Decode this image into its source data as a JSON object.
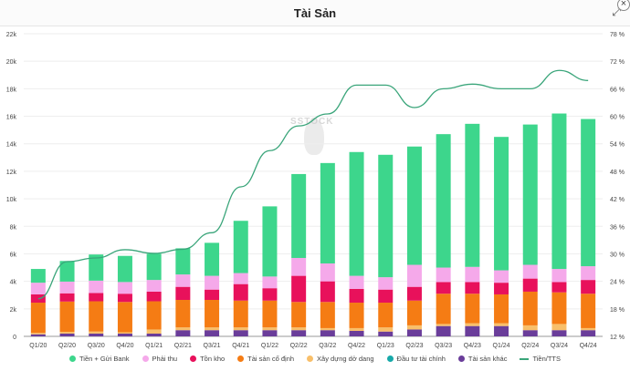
{
  "header": {
    "title": "Tài Sản",
    "expand_icon": "expand-icon",
    "close_icon": "close-icon"
  },
  "watermark": "SSTOCK",
  "chart_data": {
    "type": "bar",
    "title": "Tài Sản",
    "stacked": true,
    "categories": [
      "Q1/20",
      "Q2/20",
      "Q3/20",
      "Q4/20",
      "Q1/21",
      "Q2/21",
      "Q3/21",
      "Q4/21",
      "Q1/22",
      "Q2/22",
      "Q3/22",
      "Q4/22",
      "Q1/23",
      "Q2/23",
      "Q3/23",
      "Q4/23",
      "Q1/24",
      "Q2/24",
      "Q3/24",
      "Q4/24"
    ],
    "left_axis": {
      "min": 0,
      "max": 22000,
      "ticks": [
        "0",
        "2k",
        "4k",
        "6k",
        "8k",
        "10k",
        "12k",
        "14k",
        "16k",
        "18k",
        "20k",
        "22k"
      ]
    },
    "right_axis": {
      "min": 12,
      "max": 78,
      "ticks": [
        "12 %",
        "18 %",
        "24 %",
        "30 %",
        "36 %",
        "42 %",
        "48 %",
        "54 %",
        "60 %",
        "66 %",
        "72 %",
        "78 %"
      ]
    },
    "series": [
      {
        "name": "Tài sản khác",
        "color": "#6a3d9a",
        "values": [
          150,
          200,
          200,
          200,
          200,
          450,
          450,
          450,
          450,
          450,
          450,
          400,
          350,
          500,
          750,
          750,
          750,
          450,
          450,
          450
        ]
      },
      {
        "name": "Xây dựng dở dang",
        "color": "#f8bf6a",
        "values": [
          100,
          130,
          150,
          100,
          300,
          200,
          200,
          200,
          200,
          200,
          150,
          200,
          300,
          300,
          150,
          200,
          200,
          350,
          450,
          150
        ]
      },
      {
        "name": "Tài sản cố định",
        "color": "#f57c14",
        "values": [
          2200,
          2200,
          2200,
          2200,
          2050,
          2000,
          2000,
          1950,
          1950,
          1850,
          1900,
          1850,
          1800,
          1800,
          2200,
          2150,
          2100,
          2450,
          2300,
          2500
        ]
      },
      {
        "name": "Tồn kho",
        "color": "#e8115b",
        "values": [
          600,
          600,
          600,
          600,
          700,
          950,
          750,
          1200,
          900,
          1900,
          1500,
          1000,
          950,
          1000,
          850,
          850,
          850,
          950,
          750,
          1000
        ]
      },
      {
        "name": "Phải thu",
        "color": "#f5a9ea",
        "values": [
          850,
          850,
          900,
          850,
          850,
          900,
          1000,
          800,
          850,
          1300,
          1300,
          950,
          900,
          1600,
          1050,
          1100,
          900,
          1000,
          950,
          1000
        ]
      },
      {
        "name": "Đầu tư tài chính",
        "color": "#17a9a9",
        "values": [
          0,
          0,
          0,
          0,
          0,
          0,
          0,
          0,
          0,
          0,
          0,
          0,
          0,
          0,
          0,
          0,
          0,
          0,
          0,
          0
        ]
      },
      {
        "name": "Tiền + Gửi Bank",
        "color": "#3dd68c",
        "values": [
          1000,
          1500,
          1900,
          1900,
          1900,
          1900,
          2400,
          3800,
          5100,
          6100,
          7300,
          9000,
          8900,
          8600,
          9700,
          10400,
          9700,
          10200,
          11300,
          10700
        ]
      }
    ],
    "line": {
      "name": "Tiền/TTS",
      "color": "#3aa57a",
      "axis": "right",
      "values": [
        20.2,
        28.3,
        29.1,
        30.9,
        30.1,
        31,
        34.6,
        44.6,
        52.5,
        57.9,
        60.5,
        66.8,
        66.8,
        61.9,
        66,
        67,
        66,
        66,
        70,
        67.8
      ]
    },
    "legend": {
      "position": "bottom",
      "items": [
        {
          "label": "Tiền + Gửi Bank",
          "color": "#3dd68c",
          "kind": "dot"
        },
        {
          "label": "Phải thu",
          "color": "#f5a9ea",
          "kind": "dot"
        },
        {
          "label": "Tồn kho",
          "color": "#e8115b",
          "kind": "dot"
        },
        {
          "label": "Tài sản cố định",
          "color": "#f57c14",
          "kind": "dot"
        },
        {
          "label": "Xây dựng dở dang",
          "color": "#f8bf6a",
          "kind": "dot"
        },
        {
          "label": "Đầu tư tài chính",
          "color": "#17a9a9",
          "kind": "dot"
        },
        {
          "label": "Tài sản khác",
          "color": "#6a3d9a",
          "kind": "dot"
        },
        {
          "label": "Tiền/TTS",
          "color": "#3aa57a",
          "kind": "line"
        }
      ]
    },
    "grid": true
  }
}
